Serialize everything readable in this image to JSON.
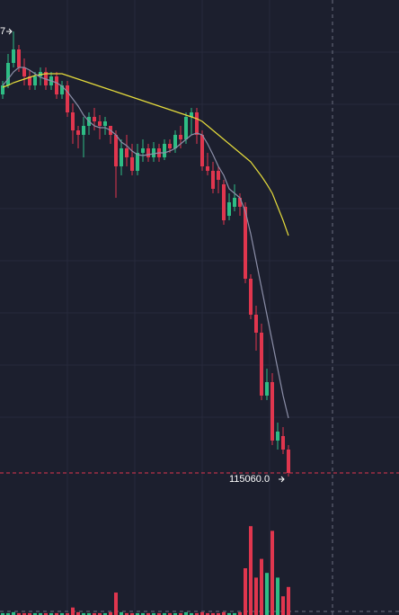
{
  "chart_data": {
    "type": "candlestick",
    "ylim": [
      113480,
      120320
    ],
    "volume_ylim": [
      0,
      100
    ],
    "up_color": "#2ebd85",
    "down_color": "#e0364e",
    "top_label": "7",
    "last_price": {
      "value": 115060,
      "label": "115060.0"
    },
    "open": [
      119270,
      119370,
      119620,
      119770,
      119570,
      119470,
      119370,
      119470,
      119520,
      119370,
      119470,
      119270,
      119370,
      119070,
      118870,
      118820,
      118920,
      119020,
      118970,
      118920,
      118920,
      118820,
      118470,
      118670,
      118570,
      118420,
      118620,
      118670,
      118570,
      118670,
      118570,
      118720,
      118670,
      118820,
      118770,
      119020,
      119070,
      118820,
      118470,
      118420,
      118420,
      118270,
      117920,
      118020,
      118120,
      118020,
      117220,
      116820,
      116620,
      115920,
      116070,
      115420,
      115470,
      115320
    ],
    "high": [
      119420,
      119720,
      119970,
      119820,
      119670,
      119540,
      119520,
      119570,
      119570,
      119520,
      119520,
      119420,
      119420,
      119170,
      118920,
      119020,
      119070,
      119120,
      119040,
      119020,
      118920,
      118870,
      118770,
      118820,
      118720,
      118720,
      118770,
      118720,
      118740,
      118720,
      118770,
      118770,
      118870,
      118920,
      119070,
      119120,
      119120,
      118870,
      118620,
      118520,
      118470,
      118320,
      118170,
      118270,
      118170,
      118070,
      117270,
      116920,
      116720,
      116220,
      116170,
      115620,
      115570,
      115370
    ],
    "low": [
      119220,
      119340,
      119570,
      119520,
      119370,
      119320,
      119320,
      119370,
      119320,
      119320,
      119220,
      119220,
      119020,
      118720,
      118670,
      118570,
      118820,
      118870,
      118770,
      118820,
      118720,
      118120,
      118370,
      118470,
      118370,
      118370,
      118520,
      118520,
      118520,
      118520,
      118540,
      118620,
      118620,
      118670,
      118720,
      118820,
      118720,
      118420,
      118370,
      118170,
      118170,
      117820,
      117870,
      117970,
      117920,
      117170,
      116770,
      116420,
      115870,
      115870,
      115370,
      115320,
      115270,
      115020
    ],
    "close": [
      119370,
      119620,
      119770,
      119570,
      119470,
      119370,
      119470,
      119520,
      119370,
      119470,
      119270,
      119370,
      119070,
      118870,
      118820,
      118920,
      119020,
      118970,
      118920,
      118970,
      118820,
      118470,
      118670,
      118570,
      118420,
      118620,
      118670,
      118570,
      118670,
      118570,
      118720,
      118670,
      118820,
      118770,
      119020,
      119070,
      118820,
      118470,
      118420,
      118220,
      118320,
      117870,
      118070,
      118120,
      118020,
      117220,
      116820,
      116620,
      115920,
      116070,
      115420,
      115520,
      115320,
      115060
    ],
    "volume": [
      2,
      2,
      3,
      2,
      2,
      2,
      2,
      2,
      2,
      2,
      2,
      2,
      2,
      8,
      3,
      2,
      2,
      2,
      2,
      2,
      3,
      24,
      3,
      2,
      2,
      2,
      2,
      2,
      2,
      2,
      2,
      2,
      2,
      2,
      3,
      2,
      2,
      3,
      2,
      2,
      2,
      3,
      2,
      2,
      3,
      50,
      95,
      40,
      60,
      45,
      90,
      40,
      20,
      30
    ],
    "ma": [
      {
        "color": "#e6dc3c",
        "values": [
          119350,
          119370,
          119400,
          119420,
          119440,
          119460,
          119480,
          119490,
          119500,
          119500,
          119500,
          119500,
          119480,
          119460,
          119440,
          119420,
          119400,
          119380,
          119360,
          119340,
          119320,
          119300,
          119280,
          119260,
          119240,
          119220,
          119200,
          119180,
          119160,
          119140,
          119120,
          119100,
          119080,
          119060,
          119040,
          119020,
          119000,
          118970,
          118920,
          118870,
          118820,
          118770,
          118720,
          118670,
          118620,
          118570,
          118520,
          118440,
          118360,
          118270,
          118170,
          118020,
          117870,
          117700
        ]
      },
      {
        "color": "#8c8fa8",
        "values": [
          119370,
          119440,
          119520,
          119570,
          119570,
          119540,
          119500,
          119460,
          119440,
          119420,
          119400,
          119360,
          119300,
          119220,
          119140,
          119040,
          118970,
          118920,
          118900,
          118900,
          118870,
          118820,
          118740,
          118700,
          118640,
          118600,
          118590,
          118600,
          118610,
          118620,
          118620,
          118640,
          118670,
          118720,
          118770,
          118820,
          118840,
          118820,
          118720,
          118600,
          118470,
          118370,
          118220,
          118170,
          118120,
          117970,
          117720,
          117420,
          117120,
          116820,
          116520,
          116220,
          115920,
          115670
        ]
      }
    ]
  }
}
